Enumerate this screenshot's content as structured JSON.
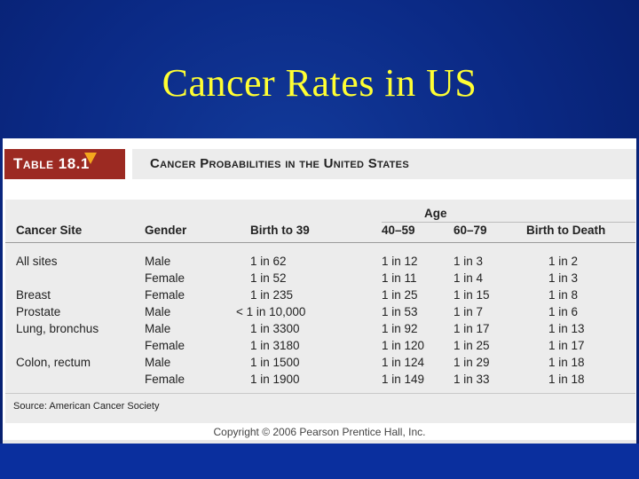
{
  "slide": {
    "title": "Cancer Rates in US"
  },
  "table": {
    "label": "Table 18.1",
    "caption": "Cancer Probabilities in the United States",
    "age_group_header": "Age",
    "columns": [
      "Cancer Site",
      "Gender",
      "Birth to 39",
      "40–59",
      "60–79",
      "Birth to Death"
    ],
    "rows": [
      {
        "site": "All sites",
        "gender": "Male",
        "birth_to_39": "1 in 62",
        "age_40_59": "1 in 12",
        "age_60_79": "1 in 3",
        "birth_to_death": "1 in 2"
      },
      {
        "site": "",
        "gender": "Female",
        "birth_to_39": "1 in 52",
        "age_40_59": "1 in 11",
        "age_60_79": "1 in 4",
        "birth_to_death": "1 in 3"
      },
      {
        "site": "Breast",
        "gender": "Female",
        "birth_to_39": "1 in 235",
        "age_40_59": "1 in 25",
        "age_60_79": "1 in 15",
        "birth_to_death": "1 in 8"
      },
      {
        "site": "Prostate",
        "gender": "Male",
        "birth_to_39": "< 1 in 10,000",
        "age_40_59": "1 in 53",
        "age_60_79": "1 in 7",
        "birth_to_death": "1 in 6"
      },
      {
        "site": "Lung, bronchus",
        "gender": "Male",
        "birth_to_39": "1 in 3300",
        "age_40_59": "1 in 92",
        "age_60_79": "1 in 17",
        "birth_to_death": "1 in 13"
      },
      {
        "site": "",
        "gender": "Female",
        "birth_to_39": "1 in 3180",
        "age_40_59": "1 in 120",
        "age_60_79": "1 in 25",
        "birth_to_death": "1 in 17"
      },
      {
        "site": "Colon, rectum",
        "gender": "Male",
        "birth_to_39": "1 in 1500",
        "age_40_59": "1 in 124",
        "age_60_79": "1 in 29",
        "birth_to_death": "1 in 18"
      },
      {
        "site": "",
        "gender": "Female",
        "birth_to_39": "1 in 1900",
        "age_40_59": "1 in 149",
        "age_60_79": "1 in 33",
        "birth_to_death": "1 in 18"
      }
    ],
    "source": "Source: American Cancer Society"
  },
  "copyright": "Copyright © 2006 Pearson Prentice Hall, Inc.",
  "colors": {
    "title_text": "#ffff33",
    "background": "#0b2a86",
    "label_band": "#9c2a22",
    "marker": "#f4a81d",
    "table_band": "#ececec"
  }
}
